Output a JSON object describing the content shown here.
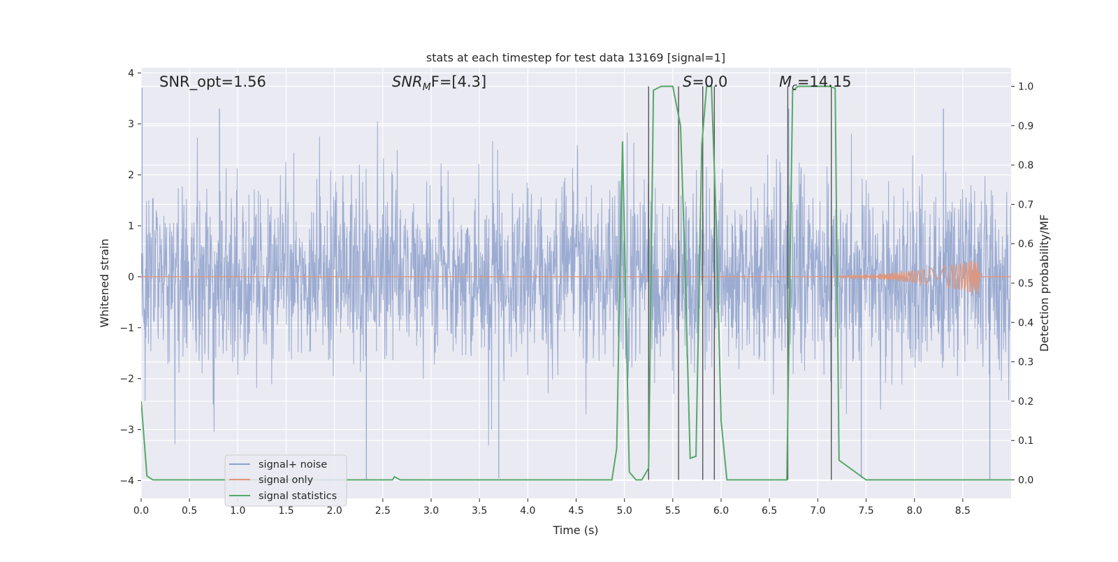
{
  "chart_data": {
    "type": "line",
    "title": "stats at each timestep for test data 13169 [signal=1]",
    "xlabel": "Time (s)",
    "ylabel_left": "Whitened strain",
    "ylabel_right": "Detection probability/MF",
    "xlim": [
      0.0,
      9.0
    ],
    "ylim_left": [
      -4.35,
      4.1
    ],
    "ylim_right": [
      -0.047,
      1.047
    ],
    "x_ticks": [
      "0.0",
      "0.5",
      "1.0",
      "1.5",
      "2.0",
      "2.5",
      "3.0",
      "3.5",
      "4.0",
      "4.5",
      "5.0",
      "5.5",
      "6.0",
      "6.5",
      "7.0",
      "7.5",
      "8.0",
      "8.5"
    ],
    "y_left_ticks": [
      "4",
      "3",
      "2",
      "1",
      "0",
      "−1",
      "−2",
      "−3",
      "−4"
    ],
    "y_right_ticks": [
      "1.0",
      "0.9",
      "0.8",
      "0.7",
      "0.6",
      "0.5",
      "0.4",
      "0.3",
      "0.2",
      "0.1",
      "0.0"
    ],
    "grid": true,
    "legend_placement": "lower-left",
    "annotations": {
      "snr_opt": "SNR_opt=1.56",
      "snr_mf_base": "SNR",
      "snr_mf_sub": "M",
      "snr_mf_rest": "F=[4.3]",
      "s_italic": "S",
      "s_rest": "=0.0",
      "mc_base": "M",
      "mc_sub": "c",
      "mc_rest": "=14.15"
    },
    "series": [
      {
        "name": "signal+ noise",
        "axis": "left",
        "color": "#8da0cb",
        "noise_std": 0.9,
        "x_start": 0.0,
        "x_end": 9.0,
        "notable_spikes": [
          [
            0.01,
            3.7
          ],
          [
            0.81,
            3.3
          ],
          [
            2.33,
            -4.0
          ],
          [
            3.7,
            -3.95
          ],
          [
            6.7,
            3.3
          ],
          [
            7.45,
            -3.95
          ],
          [
            8.3,
            3.3
          ],
          [
            8.78,
            -4.0
          ]
        ]
      },
      {
        "name": "signal only",
        "axis": "left",
        "color": "#e0967a",
        "chirp_start": 6.4,
        "chirp_peak_time": 8.66,
        "chirp_peak_amplitude": 0.35,
        "chirp_end": 8.68
      },
      {
        "name": "signal statistics",
        "axis": "right",
        "color": "#55a868",
        "x": [
          0.0,
          0.06,
          0.12,
          2.6,
          2.62,
          2.68,
          4.87,
          4.92,
          4.98,
          5.05,
          5.12,
          5.18,
          5.25,
          5.3,
          5.38,
          5.5,
          5.58,
          5.62,
          5.68,
          5.74,
          5.8,
          5.85,
          5.9,
          5.95,
          6.0,
          6.06,
          6.68,
          6.74,
          6.8,
          7.12,
          7.18,
          7.22,
          7.5,
          9.0
        ],
        "y": [
          0.2,
          0.01,
          0.0,
          0.0,
          0.008,
          0.0,
          0.0,
          0.08,
          0.86,
          0.02,
          0.0,
          0.0,
          0.03,
          0.99,
          1.0,
          1.0,
          0.9,
          0.6,
          0.055,
          0.06,
          0.85,
          1.0,
          1.0,
          0.65,
          0.15,
          0.0,
          0.0,
          0.99,
          1.0,
          1.0,
          0.995,
          0.05,
          0.0,
          0.0
        ]
      }
    ],
    "vertical_markers_x": [
      5.25,
      5.56,
      5.81,
      5.93,
      6.69,
      7.14
    ]
  }
}
